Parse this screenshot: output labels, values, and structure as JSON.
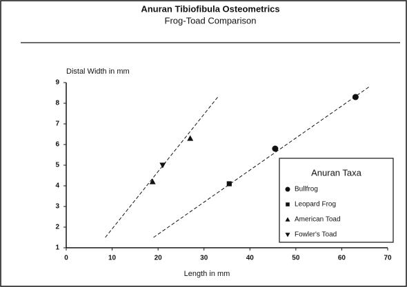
{
  "chart_data": {
    "type": "scatter",
    "title": "Anuran Tibiofibula Osteometrics",
    "subtitle": "Frog-Toad Comparison",
    "x_label": "Length in mm",
    "y_label": "Distal Width in mm",
    "xlim": [
      0,
      70
    ],
    "xticks": [
      0,
      10,
      20,
      30,
      40,
      50,
      60,
      70
    ],
    "ylim": [
      1,
      9
    ],
    "yticks": [
      1,
      2,
      3,
      4,
      5,
      6,
      7,
      8,
      9
    ],
    "grid": false,
    "legend_title": "Anuran Taxa",
    "legend": "lower right",
    "series": [
      {
        "name": "Bullfrog",
        "color": "#111111",
        "marker": "circle",
        "x": [
          45.5,
          63
        ],
        "values": [
          5.8,
          8.3
        ]
      },
      {
        "name": "Leopard Frog",
        "color": "#111111",
        "marker": "square",
        "x": [
          35.5
        ],
        "values": [
          4.1
        ]
      },
      {
        "name": "American Toad",
        "color": "#111111",
        "marker": "triangle",
        "x": [
          18.8,
          27
        ],
        "values": [
          4.2,
          6.3
        ]
      },
      {
        "name": "Fowler's Toad",
        "color": "#111111",
        "marker": "triangle-down",
        "x": [
          21
        ],
        "values": [
          5.0
        ]
      }
    ],
    "trendlines": [
      {
        "x": [
          8.5,
          33
        ],
        "y": [
          1.5,
          8.3
        ]
      },
      {
        "x": [
          19,
          66
        ],
        "y": [
          1.5,
          8.8
        ]
      }
    ]
  }
}
